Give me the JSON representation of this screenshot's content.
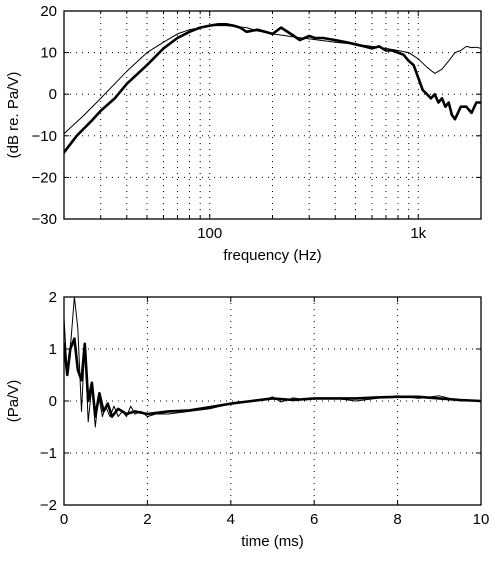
{
  "chart_data": [
    {
      "type": "line",
      "xscale": "log",
      "xlabel": "frequency (Hz)",
      "ylabel": "(dB re. Pa/V)",
      "xlim": [
        20,
        2000
      ],
      "ylim": [
        -30,
        20
      ],
      "xticks": [
        100,
        1000
      ],
      "xtick_labels": [
        "100",
        "1k"
      ],
      "xgrid": [
        30,
        40,
        50,
        60,
        70,
        80,
        90,
        100,
        200,
        300,
        400,
        500,
        600,
        700,
        800,
        900,
        1000
      ],
      "yticks": [
        -30,
        -20,
        -10,
        0,
        10,
        20
      ],
      "grid": true,
      "series": [
        {
          "style": "thin",
          "x": [
            20,
            25,
            30,
            35,
            40,
            50,
            60,
            70,
            80,
            90,
            100,
            110,
            120,
            130,
            150,
            170,
            200,
            250,
            300,
            400,
            500,
            600,
            700,
            800,
            900,
            1000,
            1100,
            1200,
            1300,
            1400,
            1500,
            1600,
            1700,
            1800,
            1900,
            2000
          ],
          "y": [
            -9.5,
            -5,
            -1,
            2.5,
            5.5,
            10,
            12.5,
            14.5,
            15.5,
            16,
            16.5,
            16.5,
            16.5,
            16.3,
            16,
            15.2,
            14.5,
            13.8,
            13.3,
            12.5,
            12,
            11.5,
            11,
            10.5,
            10,
            8.5,
            6.5,
            5,
            6,
            8,
            10,
            10.5,
            11.5,
            11.2,
            11.3,
            11
          ]
        },
        {
          "style": "thick",
          "x": [
            20,
            23,
            27,
            30,
            35,
            40,
            50,
            60,
            70,
            80,
            90,
            100,
            110,
            120,
            130,
            140,
            150,
            170,
            200,
            220,
            250,
            270,
            300,
            320,
            350,
            400,
            450,
            500,
            550,
            600,
            650,
            700,
            750,
            800,
            850,
            900,
            950,
            1000,
            1050,
            1100,
            1150,
            1200,
            1250,
            1300,
            1350,
            1400,
            1450,
            1500,
            1600,
            1700,
            1800,
            1900,
            2000
          ],
          "y": [
            -14,
            -10,
            -6.5,
            -4,
            -1,
            2.5,
            7,
            11,
            13.5,
            15,
            16,
            16.5,
            16.8,
            16.8,
            16.5,
            16,
            15,
            15.5,
            14.5,
            16,
            14.2,
            13,
            14,
            13.5,
            13.5,
            13,
            12.5,
            12,
            11.5,
            11,
            11.5,
            10.5,
            10.5,
            10,
            9.5,
            8,
            7,
            4,
            1,
            0,
            -1,
            0,
            -2,
            -1,
            -3,
            -2,
            -5,
            -6,
            -3,
            -3,
            -4.5,
            -2,
            -2
          ]
        }
      ]
    },
    {
      "type": "line",
      "xlabel": "time (ms)",
      "ylabel": "(Pa/V)",
      "xlim": [
        0,
        10
      ],
      "ylim": [
        -2,
        2
      ],
      "xticks": [
        0,
        2,
        4,
        6,
        8,
        10
      ],
      "yticks": [
        -2,
        -1,
        0,
        1,
        2
      ],
      "grid": true,
      "series": [
        {
          "style": "thin",
          "x": [
            0,
            0.08,
            0.17,
            0.25,
            0.33,
            0.42,
            0.5,
            0.58,
            0.67,
            0.75,
            0.83,
            0.92,
            1.0,
            1.1,
            1.2,
            1.3,
            1.4,
            1.5,
            1.6,
            1.7,
            1.85,
            2.0,
            2.2,
            2.5,
            3.0,
            3.5,
            4.0,
            4.5,
            4.8,
            5.0,
            5.2,
            5.5,
            5.8,
            6.0,
            6.5,
            7.0,
            7.5,
            8.0,
            8.5,
            9.0,
            9.5,
            10.0
          ],
          "y": [
            1.6,
            0.5,
            1.2,
            2.0,
            1.4,
            -0.2,
            1.1,
            -0.4,
            0.3,
            -0.5,
            0.1,
            -0.3,
            -0.1,
            -0.3,
            -0.1,
            -0.3,
            -0.2,
            -0.3,
            -0.1,
            -0.25,
            -0.2,
            -0.3,
            -0.25,
            -0.25,
            -0.2,
            -0.15,
            -0.05,
            0.0,
            0.02,
            0.08,
            -0.02,
            0.06,
            0.02,
            0.05,
            0.05,
            0.0,
            0.05,
            0.1,
            0.05,
            0.1,
            0.0,
            0.0
          ]
        },
        {
          "style": "thick",
          "x": [
            0,
            0.08,
            0.15,
            0.25,
            0.33,
            0.42,
            0.5,
            0.58,
            0.67,
            0.75,
            0.85,
            0.95,
            1.05,
            1.15,
            1.3,
            1.5,
            1.7,
            2.0,
            2.5,
            3.0,
            3.5,
            4.0,
            4.5,
            5.0,
            5.5,
            6.0,
            6.5,
            7.0,
            7.5,
            8.0,
            8.5,
            9.0,
            9.5,
            10.0
          ],
          "y": [
            1.1,
            0.5,
            1.0,
            1.2,
            0.6,
            0.4,
            1.1,
            0.0,
            0.35,
            -0.3,
            0.15,
            -0.2,
            -0.05,
            -0.3,
            -0.15,
            -0.25,
            -0.2,
            -0.25,
            -0.2,
            -0.18,
            -0.12,
            -0.05,
            0.0,
            0.05,
            0.02,
            0.05,
            0.05,
            0.05,
            0.07,
            0.08,
            0.08,
            0.05,
            0.02,
            0.0
          ]
        }
      ]
    }
  ]
}
